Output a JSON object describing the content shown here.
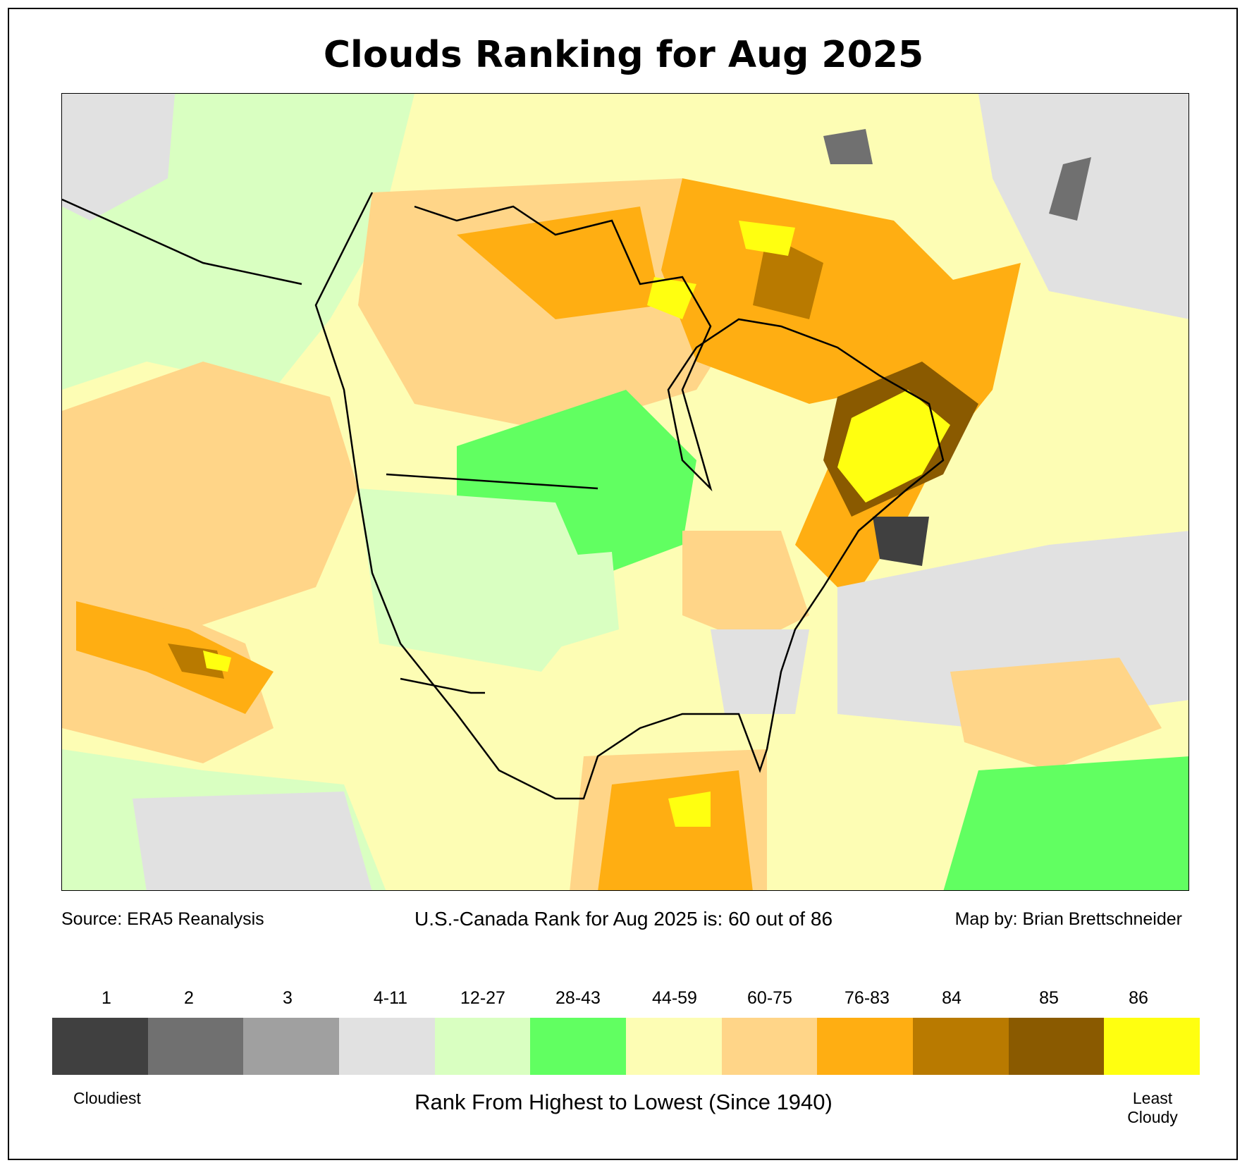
{
  "title": "Clouds Ranking for Aug 2025",
  "footer": {
    "source": "Source: ERA5 Reanalysis",
    "rank_text": "U.S.-Canada Rank for Aug 2025 is: 60 out of 86",
    "credit": "Map by: Brian Brettschneider"
  },
  "legend": {
    "bins": [
      {
        "label": "1",
        "color": "#404040"
      },
      {
        "label": "2",
        "color": "#707070"
      },
      {
        "label": "3",
        "color": "#a0a0a0"
      },
      {
        "label": "4-11",
        "color": "#e1e1e1"
      },
      {
        "label": "12-27",
        "color": "#d9ffc1"
      },
      {
        "label": "28-43",
        "color": "#61ff61"
      },
      {
        "label": "44-59",
        "color": "#fdfdb4"
      },
      {
        "label": "60-75",
        "color": "#ffd588"
      },
      {
        "label": "76-83",
        "color": "#ffae12"
      },
      {
        "label": "84",
        "color": "#b97a00"
      },
      {
        "label": "85",
        "color": "#8a5a00"
      },
      {
        "label": "86",
        "color": "#ffff10"
      }
    ],
    "low_label": "Cloudiest",
    "high_label_1": "Least",
    "high_label_2": "Cloudy",
    "axis_label": "Rank From Highest to Lowest (Since 1940)"
  }
}
